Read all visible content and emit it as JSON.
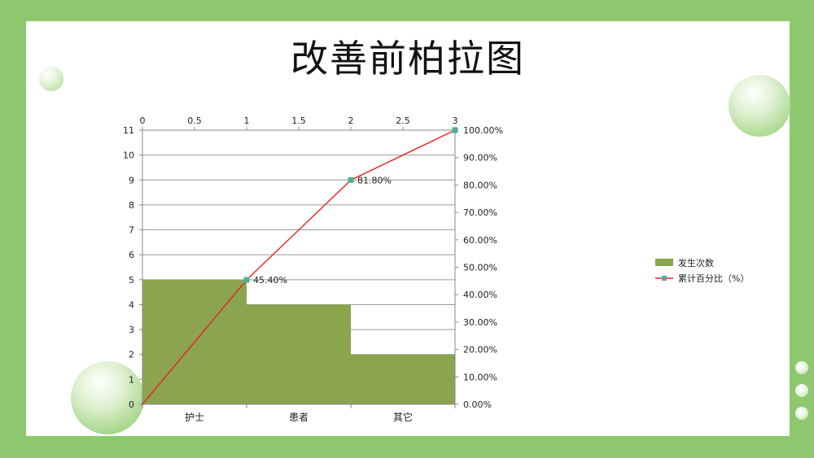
{
  "slide": {
    "title": "改善前柏拉图"
  },
  "chart_data": {
    "type": "bar+line",
    "categories": [
      "护士",
      "患者",
      "其它"
    ],
    "bar_series": {
      "name": "发生次数",
      "values": [
        5,
        4,
        2
      ],
      "color": "#8aa54e"
    },
    "line_series": {
      "name": "累计百分比（%）",
      "x": [
        0,
        1,
        2,
        3
      ],
      "values": [
        0,
        45.4,
        81.8,
        100
      ],
      "color": "#e8231f",
      "marker_color": "#4fae96",
      "data_labels": [
        "",
        "45.40%",
        "81.80%",
        ""
      ]
    },
    "y_left": {
      "min": 0,
      "max": 11,
      "ticks": [
        "0",
        "1",
        "2",
        "3",
        "4",
        "5",
        "6",
        "7",
        "8",
        "9",
        "10",
        "11"
      ]
    },
    "y_right": {
      "min": 0,
      "max": 100,
      "ticks": [
        "0.00%",
        "10.00%",
        "20.00%",
        "30.00%",
        "40.00%",
        "50.00%",
        "60.00%",
        "70.00%",
        "80.00%",
        "90.00%",
        "100.00%"
      ]
    },
    "x_top": {
      "min": 0,
      "max": 3,
      "ticks": [
        "0",
        "0.5",
        "1",
        "1.5",
        "2",
        "2.5",
        "3"
      ]
    },
    "grid": true,
    "legend": "right"
  }
}
